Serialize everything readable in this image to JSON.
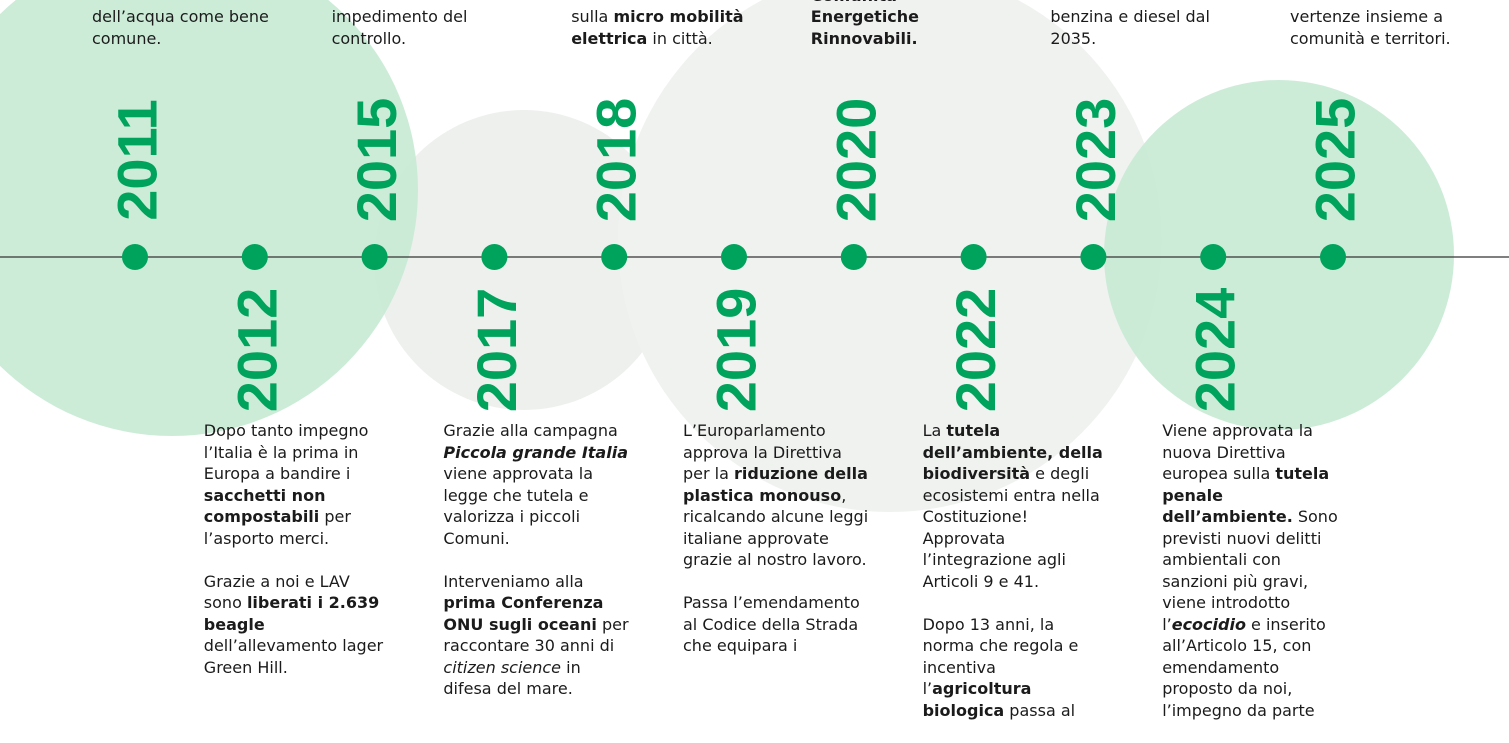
{
  "events": [
    {
      "year": "2011",
      "position": "top",
      "paragraphs": [
        [
          {
            "text": "dell’acqua come bene comune.",
            "style": "n"
          }
        ]
      ]
    },
    {
      "year": "2012",
      "position": "bottom",
      "paragraphs": [
        [
          {
            "text": "Dopo tanto impegno l’Italia è la prima in Europa a bandire i ",
            "style": "n"
          },
          {
            "text": "sacchetti non compostabili",
            "style": "b"
          },
          {
            "text": " per l’asporto merci.",
            "style": "n"
          }
        ],
        [
          {
            "text": "Grazie a noi e LAV sono ",
            "style": "n"
          },
          {
            "text": "liberati i 2.639 beagle",
            "style": "b"
          },
          {
            "text": " dell’allevamento lager Green Hill.",
            "style": "n"
          }
        ]
      ]
    },
    {
      "year": "2015",
      "position": "top",
      "paragraphs": [
        [
          {
            "text": "impedimento del controllo.",
            "style": "n"
          }
        ]
      ]
    },
    {
      "year": "2017",
      "position": "bottom",
      "paragraphs": [
        [
          {
            "text": "Grazie alla campagna ",
            "style": "n"
          },
          {
            "text": "Piccola grande Italia",
            "style": "bi"
          },
          {
            "text": " viene approvata la legge che tutela e valorizza i piccoli Comuni.",
            "style": "n"
          }
        ],
        [
          {
            "text": "Interveniamo alla ",
            "style": "n"
          },
          {
            "text": "prima Conferenza ONU sugli oceani",
            "style": "b"
          },
          {
            "text": " per raccontare 30 anni di ",
            "style": "n"
          },
          {
            "text": "citizen science",
            "style": "i"
          },
          {
            "text": " in difesa del mare.",
            "style": "n"
          }
        ]
      ]
    },
    {
      "year": "2018",
      "position": "top",
      "paragraphs": [
        [
          {
            "text": "sulla ",
            "style": "n"
          },
          {
            "text": "micro mobilità elettrica",
            "style": "b"
          },
          {
            "text": " in città.",
            "style": "n"
          }
        ]
      ]
    },
    {
      "year": "2019",
      "position": "bottom",
      "paragraphs": [
        [
          {
            "text": "L’Europarlamento approva la Direttiva per la ",
            "style": "n"
          },
          {
            "text": "riduzione della plastica monouso",
            "style": "b"
          },
          {
            "text": ", ricalcando alcune leggi italiane approvate grazie al nostro lavoro.",
            "style": "n"
          }
        ],
        [
          {
            "text": "Passa l’emendamento al Codice della Strada che equipara i",
            "style": "n"
          }
        ]
      ]
    },
    {
      "year": "2020",
      "position": "top",
      "paragraphs": [
        [
          {
            "text": "Comunità Energetiche Rinnovabili.",
            "style": "b"
          }
        ]
      ]
    },
    {
      "year": "2022",
      "position": "bottom",
      "paragraphs": [
        [
          {
            "text": "La ",
            "style": "n"
          },
          {
            "text": "tutela dell’ambiente, della biodiversità",
            "style": "b"
          },
          {
            "text": " e degli ecosistemi entra nella Costituzione! Approvata l’integrazione agli Articoli 9 e 41.",
            "style": "n"
          }
        ],
        [
          {
            "text": "Dopo 13 anni, la norma che regola e incentiva l’",
            "style": "n"
          },
          {
            "text": "agricoltura biologica",
            "style": "b"
          },
          {
            "text": " passa al",
            "style": "n"
          }
        ]
      ]
    },
    {
      "year": "2023",
      "position": "top",
      "paragraphs": [
        [
          {
            "text": "benzina e diesel dal 2035.",
            "style": "n"
          }
        ]
      ]
    },
    {
      "year": "2024",
      "position": "bottom",
      "paragraphs": [
        [
          {
            "text": "Viene approvata la nuova Direttiva europea sulla ",
            "style": "n"
          },
          {
            "text": "tutela penale dell’ambiente.",
            "style": "b"
          },
          {
            "text": " Sono previsti nuovi delitti ambientali con sanzioni più gravi, viene introdotto l’",
            "style": "n"
          },
          {
            "text": "ecocidio",
            "style": "bi"
          },
          {
            "text": " e inserito all’Articolo 15, con emendamento proposto da noi, l’impegno da parte",
            "style": "n"
          }
        ]
      ]
    },
    {
      "year": "2025",
      "position": "top",
      "paragraphs": [
        [
          {
            "text": "vertenze insieme a comunità e territori.",
            "style": "n"
          }
        ]
      ]
    }
  ]
}
